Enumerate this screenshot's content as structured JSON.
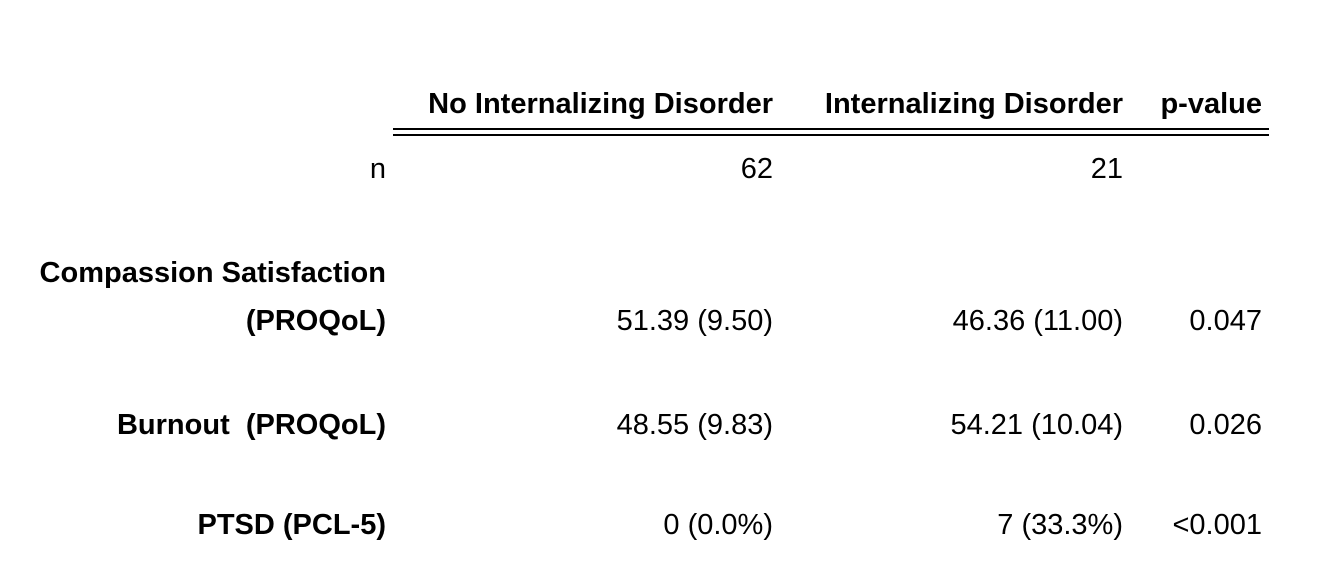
{
  "table": {
    "headers": [
      "No Internalizing Disorder",
      "Internalizing Disorder",
      "p-value"
    ],
    "n_row": {
      "label": "n",
      "values": [
        "62",
        "21",
        ""
      ]
    },
    "rows": [
      {
        "label_line1": "Compassion Satisfaction",
        "label_line2": "(PROQoL)",
        "values": [
          "51.39 (9.50)",
          "46.36 (11.00)",
          "0.047"
        ]
      },
      {
        "label_line1": "Burnout  (PROQoL)",
        "values": [
          "48.55 (9.83)",
          "54.21 (10.04)",
          "0.026"
        ]
      },
      {
        "label_line1": "PTSD (PCL-5)",
        "values": [
          "0 (0.0%)",
          "7 (33.3%)",
          "<0.001"
        ]
      }
    ]
  }
}
